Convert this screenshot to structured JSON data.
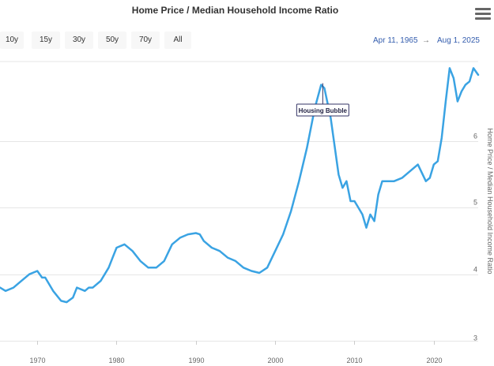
{
  "toolbar": {
    "title": "Home Price / Median Household Income Ratio",
    "range_buttons": [
      "10y",
      "15y",
      "30y",
      "50y",
      "70y",
      "All"
    ],
    "date_from": "Apr 11, 1965",
    "date_sep": "→",
    "date_to": "Aug 1, 2025"
  },
  "colors": {
    "series": "#3aa3e3",
    "grid": "#e6e6e6",
    "axis_text": "#666666",
    "date_text": "#335cad"
  },
  "icons": {
    "menu": "hamburger-menu-icon"
  },
  "chart_data": {
    "type": "line",
    "title": "Home Price / Median Household Income Ratio",
    "ylabel": "Home Price / Median Household Income Ratio",
    "xlabel": "",
    "x_ticks": [
      1970,
      1980,
      1990,
      2000,
      2010,
      2020
    ],
    "y_ticks": [
      3,
      4,
      5,
      6
    ],
    "xlim": [
      1965.3,
      2025.6
    ],
    "ylim": [
      3.0,
      7.2
    ],
    "grid": "horizontal",
    "y_axis_side": "right",
    "annotation": {
      "text": "Housing Bubble",
      "x": 2006.0,
      "y": 6.85
    },
    "series": [
      {
        "x": [
          1965.3,
          1966.0,
          1967.0,
          1968.0,
          1969.0,
          1970.0,
          1970.6,
          1971.0,
          1972.0,
          1973.0,
          1973.7,
          1974.5,
          1975.0,
          1976.0,
          1976.5,
          1977.0,
          1978.0,
          1979.0,
          1979.5,
          1980.0,
          1981.0,
          1982.0,
          1983.0,
          1984.0,
          1985.0,
          1986.0,
          1987.0,
          1988.0,
          1989.0,
          1990.0,
          1990.5,
          1991.0,
          1992.0,
          1993.0,
          1994.0,
          1995.0,
          1996.0,
          1997.0,
          1998.0,
          1999.0,
          2000.0,
          2001.0,
          2002.0,
          2003.0,
          2004.0,
          2005.0,
          2005.8,
          2006.2,
          2007.0,
          2008.0,
          2008.5,
          2009.0,
          2009.5,
          2010.0,
          2010.5,
          2011.0,
          2011.5,
          2012.0,
          2012.5,
          2013.0,
          2013.5,
          2014.0,
          2015.0,
          2016.0,
          2017.0,
          2018.0,
          2019.0,
          2019.5,
          2020.0,
          2020.5,
          2021.0,
          2021.5,
          2022.0,
          2022.5,
          2023.0,
          2023.5,
          2024.0,
          2024.5,
          2025.0,
          2025.6
        ],
        "values": [
          3.8,
          3.75,
          3.8,
          3.9,
          4.0,
          4.05,
          3.95,
          3.95,
          3.75,
          3.6,
          3.58,
          3.65,
          3.8,
          3.75,
          3.8,
          3.8,
          3.9,
          4.1,
          4.25,
          4.4,
          4.45,
          4.35,
          4.2,
          4.1,
          4.1,
          4.2,
          4.45,
          4.55,
          4.6,
          4.62,
          4.6,
          4.5,
          4.4,
          4.35,
          4.25,
          4.2,
          4.1,
          4.05,
          4.02,
          4.1,
          4.35,
          4.6,
          4.95,
          5.4,
          5.9,
          6.5,
          6.85,
          6.8,
          6.35,
          5.5,
          5.3,
          5.4,
          5.1,
          5.1,
          5.0,
          4.9,
          4.7,
          4.9,
          4.8,
          5.2,
          5.4,
          5.4,
          5.4,
          5.45,
          5.55,
          5.65,
          5.4,
          5.45,
          5.65,
          5.7,
          6.05,
          6.6,
          7.1,
          6.95,
          6.6,
          6.75,
          6.85,
          6.9,
          7.1,
          7.0
        ]
      }
    ]
  }
}
